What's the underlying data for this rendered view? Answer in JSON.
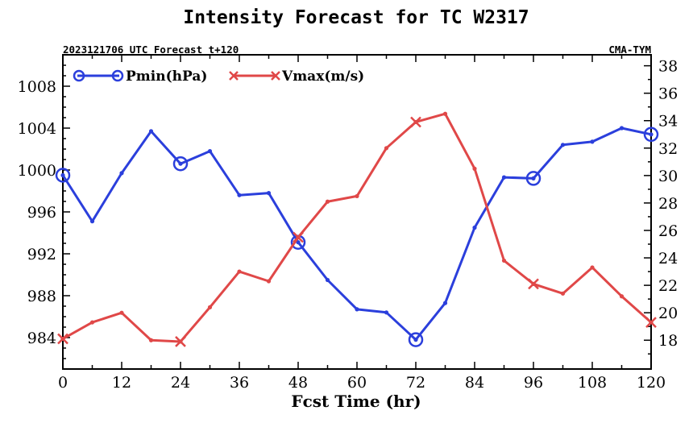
{
  "chart_data": {
    "type": "line",
    "title": "Intensity Forecast for TC W2317",
    "subtitle_left": "2023121706 UTC Forecast t+120",
    "subtitle_right": "CMA-TYM",
    "xlabel": "Fcst Time (hr)",
    "xlim": [
      0,
      120
    ],
    "xticks": [
      "0",
      "12",
      "24",
      "36",
      "48",
      "60",
      "72",
      "84",
      "96",
      "108",
      "120"
    ],
    "y_left": {
      "ylim": [
        981,
        1011
      ],
      "ticks": [
        "984",
        "988",
        "992",
        "996",
        "1000",
        "1004",
        "1008"
      ]
    },
    "y_right": {
      "ylim": [
        15.9,
        38.8
      ],
      "ticks": [
        "18",
        "20",
        "22",
        "24",
        "26",
        "28",
        "30",
        "32",
        "34",
        "36",
        "38"
      ]
    },
    "x": [
      0,
      6,
      12,
      18,
      24,
      30,
      36,
      42,
      48,
      54,
      60,
      66,
      72,
      78,
      84,
      90,
      96,
      102,
      108,
      114,
      120
    ],
    "series": [
      {
        "name": "Pmin(hPa)",
        "axis": "left",
        "color": "#2b3fdc",
        "marker": "circle",
        "marker_every": 4,
        "values": [
          999.5,
          995.1,
          999.7,
          1003.7,
          1000.6,
          1001.8,
          997.6,
          997.8,
          993.1,
          989.5,
          986.7,
          986.4,
          983.8,
          987.3,
          994.5,
          999.3,
          999.2,
          1002.4,
          1002.7,
          1004.0,
          1003.4
        ]
      },
      {
        "name": "Vmax(m/s)",
        "axis": "right",
        "color": "#e04848",
        "marker": "x",
        "marker_every": 4,
        "values": [
          18.1,
          19.3,
          20.0,
          18.0,
          17.9,
          20.4,
          23.0,
          22.3,
          25.5,
          28.1,
          28.5,
          32.0,
          33.9,
          34.5,
          30.5,
          23.8,
          22.1,
          21.4,
          23.3,
          21.2,
          19.3
        ]
      }
    ],
    "grid": false,
    "legend": "top-left"
  }
}
